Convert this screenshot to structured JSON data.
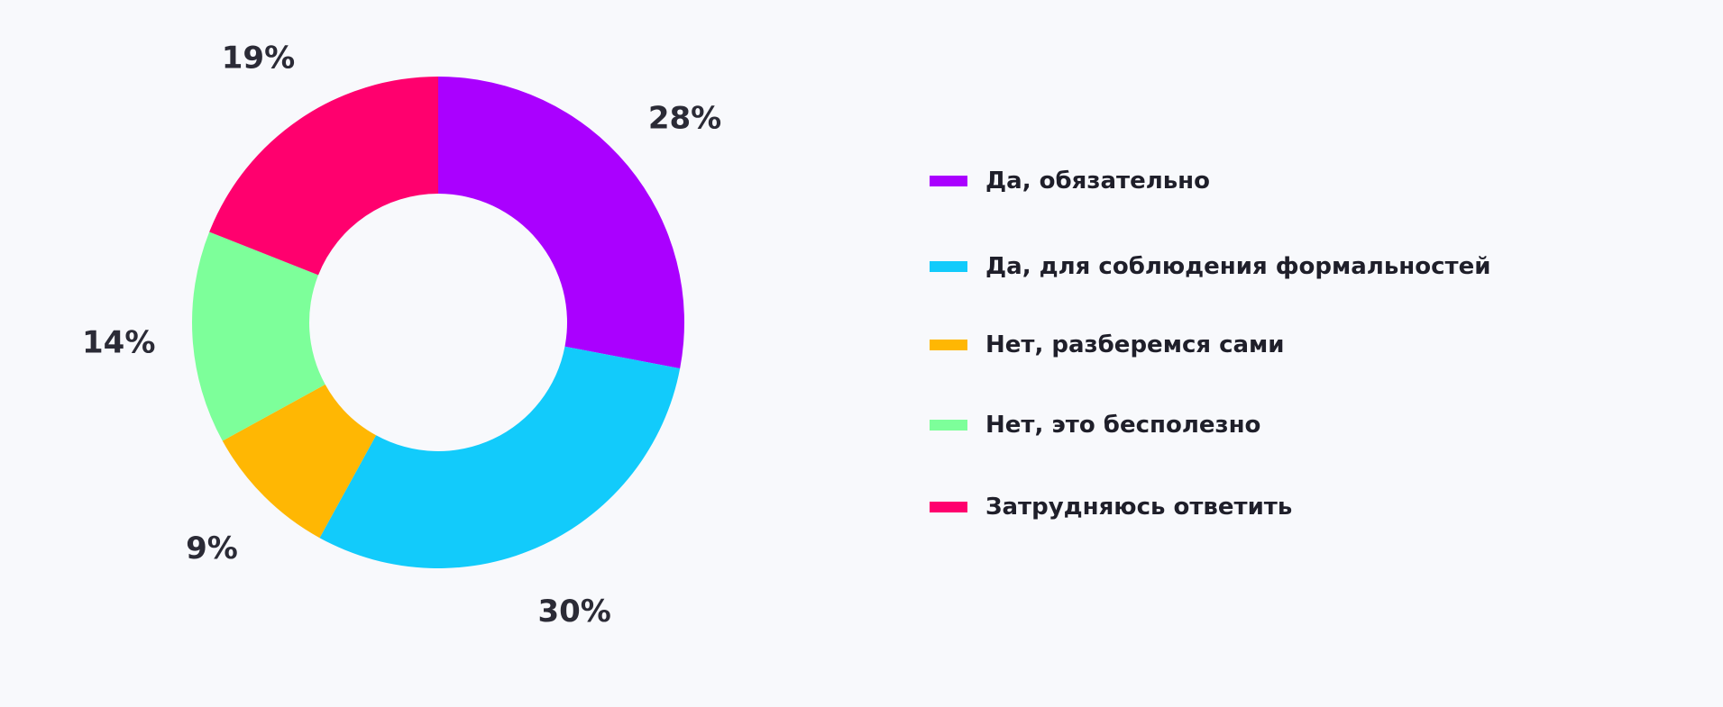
{
  "chart_data": {
    "type": "pie",
    "donut": true,
    "categories": [
      "Да, обязательно",
      "Да, для соблюдения формальностей",
      "Нет, разберемся сами",
      "Нет, это бесполезно",
      "Затрудняюсь ответить"
    ],
    "values": [
      28,
      30,
      9,
      14,
      19
    ],
    "value_labels": [
      "28%",
      "30%",
      "9%",
      "14%",
      "19%"
    ],
    "unit": "%",
    "colors": [
      "#aa00ff",
      "#12cbfb",
      "#ffb703",
      "#7dff9a",
      "#ff006e"
    ],
    "start_angle_deg": 0,
    "direction": "clockwise",
    "legend_position": "right"
  }
}
